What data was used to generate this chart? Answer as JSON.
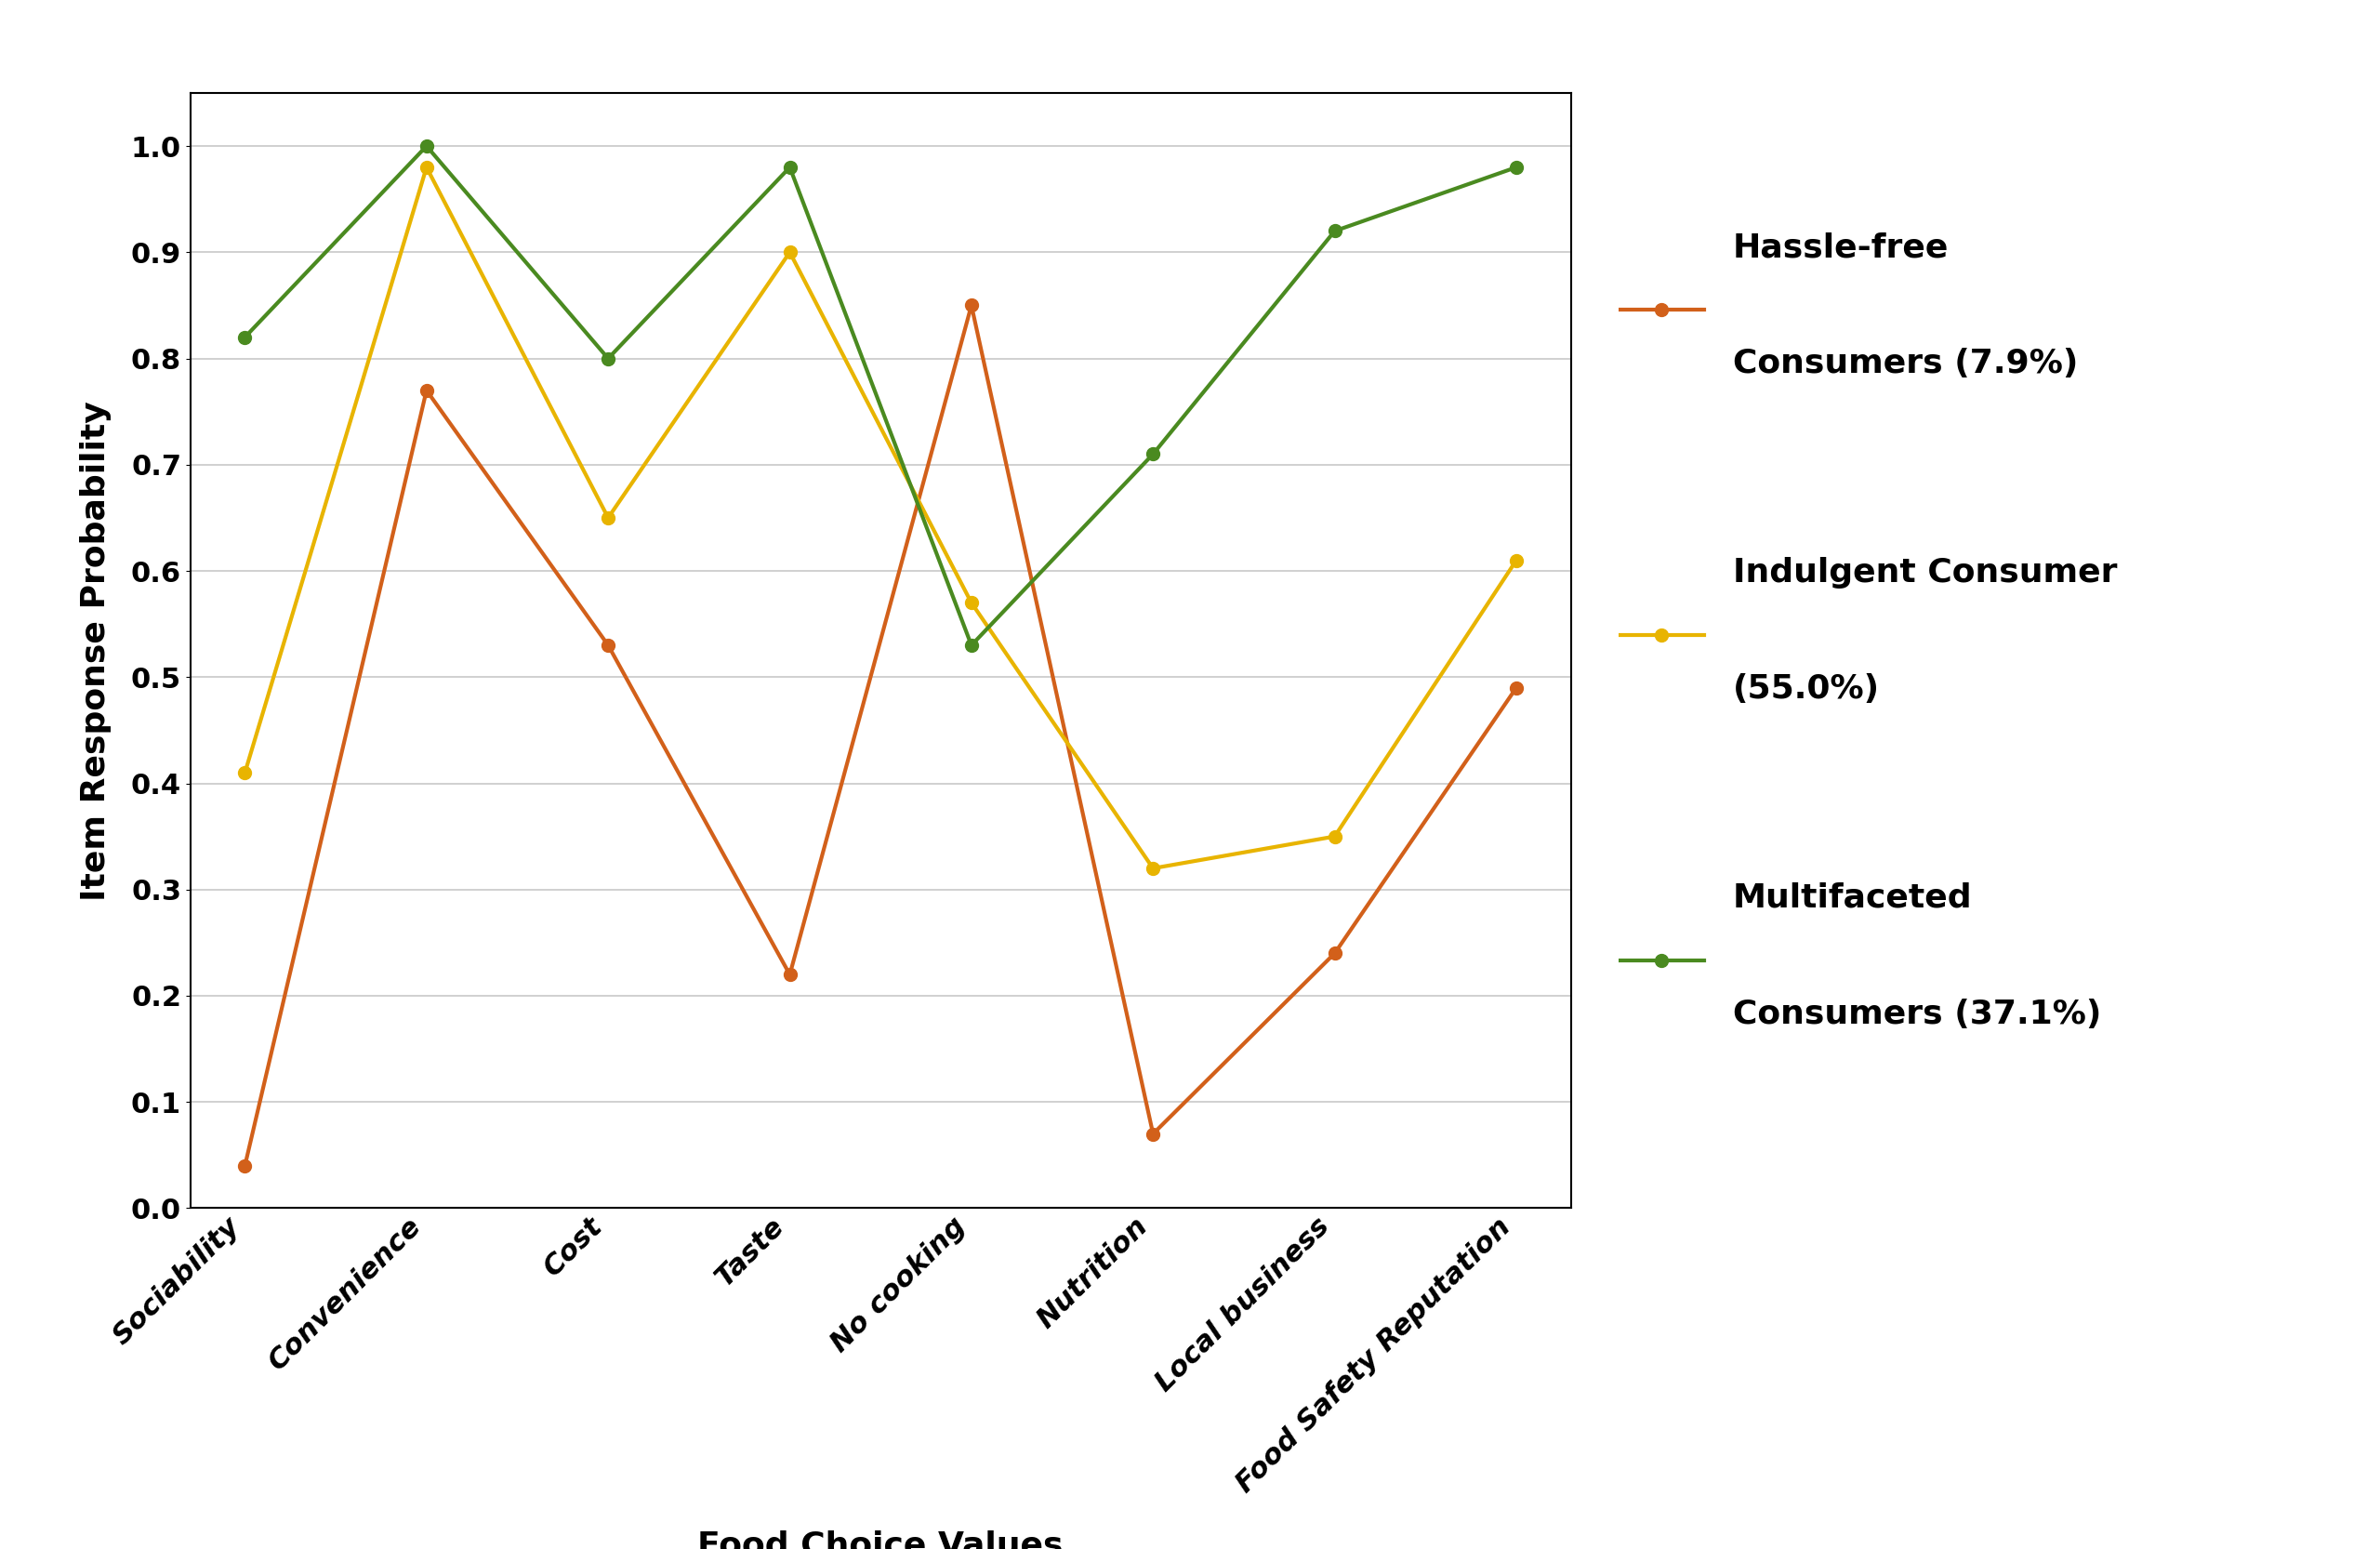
{
  "categories": [
    "Sociability",
    "Convenience",
    "Cost",
    "Taste",
    "No cooking",
    "Nutrition",
    "Local business",
    "Food Safety Reputation"
  ],
  "series": [
    {
      "name": "Hassle-free\nConsumers (7.9%)",
      "values": [
        0.04,
        0.77,
        0.53,
        0.22,
        0.85,
        0.07,
        0.24,
        0.49
      ],
      "color": "#D2601A",
      "marker": "o"
    },
    {
      "name": "Indulgent Consumer\n(55.0%)",
      "values": [
        0.41,
        0.98,
        0.65,
        0.9,
        0.57,
        0.32,
        0.35,
        0.61
      ],
      "color": "#E8B400",
      "marker": "o"
    },
    {
      "name": "Multifaceted\nConsumers (37.1%)",
      "values": [
        0.82,
        1.0,
        0.8,
        0.98,
        0.53,
        0.71,
        0.92,
        0.98
      ],
      "color": "#4A8A20",
      "marker": "o"
    }
  ],
  "ylabel": "Item Response Probability",
  "xlabel": "Food Choice Values",
  "ylim": [
    0,
    1.05
  ],
  "yticks": [
    0,
    0.1,
    0.2,
    0.3,
    0.4,
    0.5,
    0.6,
    0.7,
    0.8,
    0.9,
    1
  ],
  "background_color": "#FFFFFF",
  "grid_color": "#C8C8C8",
  "linewidth": 3.0,
  "markersize": 10,
  "label_fontsize": 26,
  "tick_fontsize": 22,
  "legend_fontsize": 26
}
